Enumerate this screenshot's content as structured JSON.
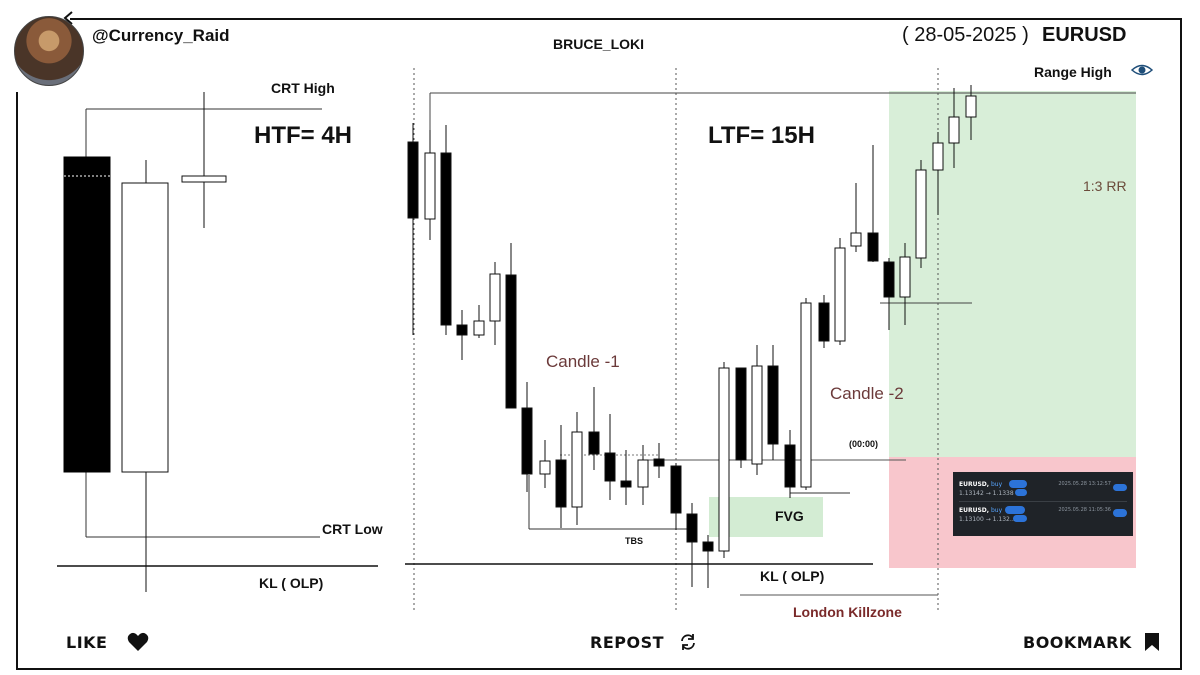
{
  "header": {
    "handle": "@Currency_Raid",
    "author": "BRUCE_LOKI",
    "date": "( 28-05-2025 )",
    "pair": "EURUSD"
  },
  "htf": {
    "title": "HTF= 4H",
    "crt_high": "CRT High",
    "crt_low": "CRT Low",
    "key_level": "KL ( OLP)"
  },
  "ltf": {
    "title": "LTF= 15H",
    "range_high": "Range High",
    "rr": "1:3 RR",
    "candle1": "Candle -1",
    "candle2": "Candle -2",
    "time_marker": "(00:00)",
    "fvg": "FVG",
    "tbs": "TBS",
    "key_level": "KL ( OLP)",
    "session": "London Killzone"
  },
  "trades": [
    {
      "symbol": "EURUSD,",
      "side": "buy",
      "prices": "1.13142 → 1.1338",
      "time": "2025.05.28 13:12:57"
    },
    {
      "symbol": "EURUSD,",
      "side": "buy",
      "prices": "1.13100 → 1.132…",
      "time": "2025.05.28 11:05:36"
    }
  ],
  "footer": {
    "like": "LIKE",
    "repost": "REPOST",
    "bookmark": "BOOKMARK"
  },
  "colors": {
    "target_zone": "#d8eed8",
    "stop_zone": "#f8c6cc",
    "fvg_zone": "#d3ecd3",
    "session_text": "#7a2a2a",
    "bull": "#ffffff",
    "bear": "#000000"
  },
  "icons": [
    "back-arrow-icon",
    "eye-icon",
    "heart-icon",
    "repost-icon",
    "bookmark-icon"
  ]
}
